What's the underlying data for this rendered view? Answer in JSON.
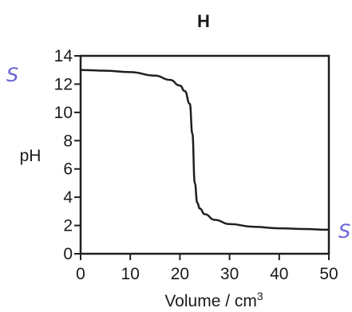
{
  "chart_data": {
    "type": "line",
    "title": "H",
    "xlabel": "Volume / cm",
    "xlabel_superscript": "3",
    "ylabel": "pH",
    "xlim": [
      0,
      50
    ],
    "ylim": [
      0,
      14
    ],
    "x_ticks": [
      "0",
      "10",
      "20",
      "30",
      "40",
      "50"
    ],
    "y_ticks": [
      "0",
      "2",
      "4",
      "6",
      "8",
      "10",
      "12",
      "14"
    ],
    "grid": false,
    "series": [
      {
        "x": [
          0,
          5,
          10,
          15,
          18,
          20,
          21,
          22,
          22.5,
          23,
          23.5,
          24,
          25,
          27,
          30,
          35,
          40,
          45,
          50
        ],
        "y": [
          13.0,
          12.95,
          12.85,
          12.6,
          12.3,
          11.9,
          11.5,
          10.6,
          8.5,
          5.0,
          3.6,
          3.2,
          2.8,
          2.4,
          2.1,
          1.9,
          1.8,
          1.75,
          1.7
        ]
      }
    ],
    "annotations": [
      {
        "text": "S",
        "at": "left of y=13"
      },
      {
        "text": "S",
        "at": "right of end point"
      }
    ],
    "colors": {
      "line": "#1f1f1f",
      "axis": "#1f1f1f",
      "annotation": "#6b63d6"
    }
  }
}
